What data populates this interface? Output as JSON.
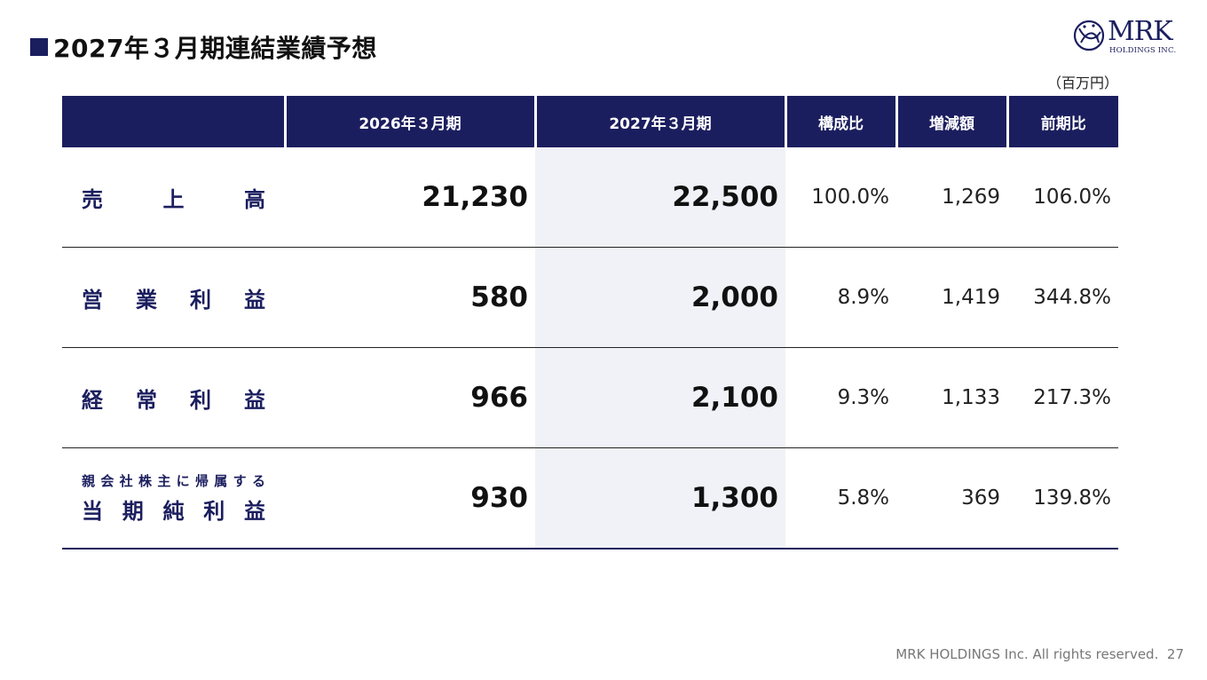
{
  "title": "2027年３月期連結業績予想",
  "logo": {
    "brand": "MRK",
    "sub": "HOLDINGS INC."
  },
  "unit": "（百万円）",
  "header": [
    "",
    "2026年３月期",
    "2027年３月期",
    "構成比",
    "増減額",
    "前期比"
  ],
  "rows": [
    {
      "label_chars": [
        "売",
        "上",
        "高"
      ],
      "prev": "21,230",
      "forecast": "22,500",
      "ratio": "100.0%",
      "change": "1,269",
      "yoy": "106.0%"
    },
    {
      "label_chars": [
        "営",
        "業",
        "利",
        "益"
      ],
      "prev": "580",
      "forecast": "2,000",
      "ratio": "8.9%",
      "change": "1,419",
      "yoy": "344.8%"
    },
    {
      "label_chars": [
        "経",
        "常",
        "利",
        "益"
      ],
      "prev": "966",
      "forecast": "2,100",
      "ratio": "9.3%",
      "change": "1,133",
      "yoy": "217.3%"
    },
    {
      "label_small_chars": [
        "親",
        "会",
        "社",
        "株",
        "主",
        "に",
        "帰",
        "属",
        "す",
        "る"
      ],
      "label_chars": [
        "当",
        "期",
        "純",
        "利",
        "益"
      ],
      "prev": "930",
      "forecast": "1,300",
      "ratio": "5.8%",
      "change": "369",
      "yoy": "139.8%"
    }
  ],
  "footer": {
    "copyright": "MRK HOLDINGS Inc. All rights reserved.",
    "page": "27"
  },
  "colors": {
    "navy": "#1b1e5e",
    "highlight": "#f1f2f8"
  }
}
